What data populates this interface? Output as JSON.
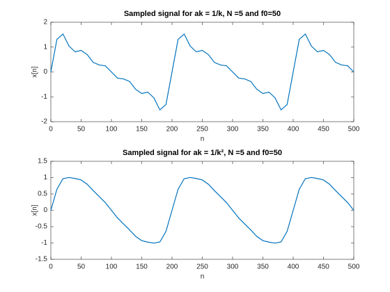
{
  "chart_data": [
    {
      "type": "line",
      "title": "Sampled signal for ak = 1/k, N =5 and f0=50",
      "x_label": "n",
      "y_label": "x[n]",
      "x": [
        0,
        10,
        20,
        30,
        40,
        50,
        60,
        70,
        80,
        90,
        100,
        110,
        120,
        130,
        140,
        150,
        160,
        170,
        180,
        190,
        200,
        210,
        220,
        230,
        240,
        250,
        260,
        270,
        280,
        290,
        300,
        310,
        320,
        330,
        340,
        350,
        360,
        370,
        380,
        390,
        400,
        410,
        420,
        430,
        440,
        450,
        460,
        470,
        480,
        490,
        500
      ],
      "series": [
        {
          "name": "x[n]",
          "color": "#0072bd",
          "values": [
            0,
            1.31,
            1.527,
            1.041,
            0.811,
            0.867,
            0.699,
            0.383,
            0.282,
            0.247,
            0,
            -0.247,
            -0.282,
            -0.383,
            -0.699,
            -0.867,
            -0.811,
            -1.041,
            -1.527,
            -1.31,
            0,
            1.31,
            1.527,
            1.041,
            0.811,
            0.867,
            0.699,
            0.383,
            0.282,
            0.247,
            0,
            -0.247,
            -0.282,
            -0.383,
            -0.699,
            -0.867,
            -0.811,
            -1.041,
            -1.527,
            -1.31,
            0,
            1.31,
            1.527,
            1.041,
            0.811,
            0.867,
            0.699,
            0.383,
            0.282,
            0.247,
            0
          ]
        }
      ],
      "xlim": [
        0,
        500
      ],
      "xticks": [
        0,
        50,
        100,
        150,
        200,
        250,
        300,
        350,
        400,
        450,
        500
      ],
      "ylim": [
        -2,
        2
      ],
      "yticks": [
        -2,
        -1,
        0,
        1,
        2
      ]
    },
    {
      "type": "line",
      "title": "Sampled signal for ak = 1/k², N =5 and f0=50",
      "x_label": "n",
      "y_label": "x[n]",
      "x": [
        0,
        10,
        20,
        30,
        40,
        50,
        60,
        70,
        80,
        90,
        100,
        110,
        120,
        130,
        140,
        150,
        160,
        170,
        180,
        190,
        200,
        210,
        220,
        230,
        240,
        250,
        260,
        270,
        280,
        290,
        300,
        310,
        320,
        330,
        340,
        350,
        360,
        370,
        380,
        390,
        400,
        410,
        420,
        430,
        440,
        450,
        460,
        470,
        480,
        490,
        500
      ],
      "series": [
        {
          "name": "x[n]",
          "color": "#0072bd",
          "values": [
            0,
            0.645,
            0.968,
            1.004,
            0.973,
            0.929,
            0.798,
            0.602,
            0.419,
            0.233,
            0,
            -0.233,
            -0.419,
            -0.602,
            -0.798,
            -0.929,
            -0.973,
            -1.004,
            -0.968,
            -0.645,
            0,
            0.645,
            0.968,
            1.004,
            0.973,
            0.929,
            0.798,
            0.602,
            0.419,
            0.233,
            0,
            -0.233,
            -0.419,
            -0.602,
            -0.798,
            -0.929,
            -0.973,
            -1.004,
            -0.968,
            -0.645,
            0,
            0.645,
            0.968,
            1.004,
            0.973,
            0.929,
            0.798,
            0.602,
            0.419,
            0.233,
            0
          ]
        }
      ],
      "xlim": [
        0,
        500
      ],
      "xticks": [
        0,
        50,
        100,
        150,
        200,
        250,
        300,
        350,
        400,
        450,
        500
      ],
      "ylim": [
        -1.5,
        1.5
      ],
      "yticks": [
        -1.5,
        -1,
        -0.5,
        0,
        0.5,
        1,
        1.5
      ]
    }
  ]
}
